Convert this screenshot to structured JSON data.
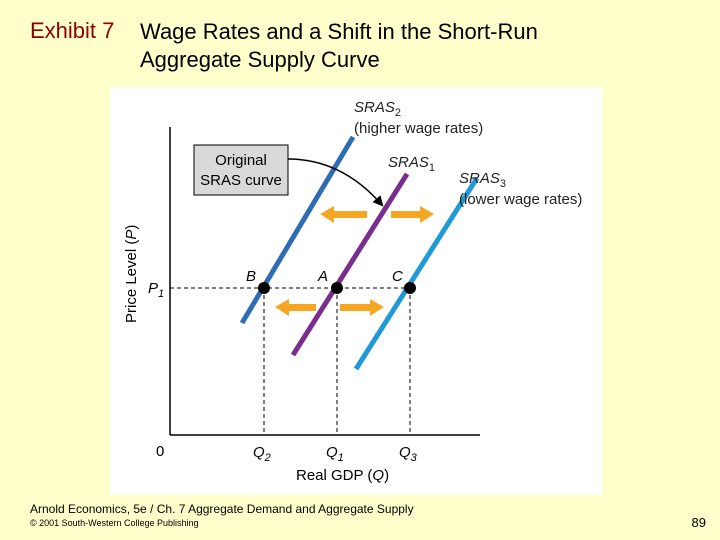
{
  "slide": {
    "exhibit_label": "Exhibit 7",
    "title_line1": "Wage Rates and a Shift in the Short-Run",
    "title_line2": "Aggregate Supply Curve",
    "source": "Arnold Economics, 5e / Ch. 7 Aggregate Demand and Aggregate Supply",
    "copyright": "© 2001 South-Western College Publishing",
    "page_number": "89"
  },
  "diagram": {
    "y_axis_label": "Price Level (P)",
    "x_axis_label": "Real GDP (Q)",
    "origin": "0",
    "p1": "P1",
    "q2": "Q2",
    "q1": "Q1",
    "q3": "Q3",
    "box_line1": "Original",
    "box_line2": "SRAS curve",
    "sras2_name": "SRAS2",
    "sras2_note": "(higher wage rates)",
    "sras1_name": "SRAS1",
    "sras3_name": "SRAS3",
    "sras3_note": "(lower wage rates)",
    "point_b": "B",
    "point_a": "A",
    "point_c": "C",
    "colors": {
      "sras2": "#2e6db4",
      "sras1": "#7b2d8e",
      "sras3": "#1f9ad6",
      "arrow": "#f5a623",
      "box": "#d9d9d9"
    }
  }
}
